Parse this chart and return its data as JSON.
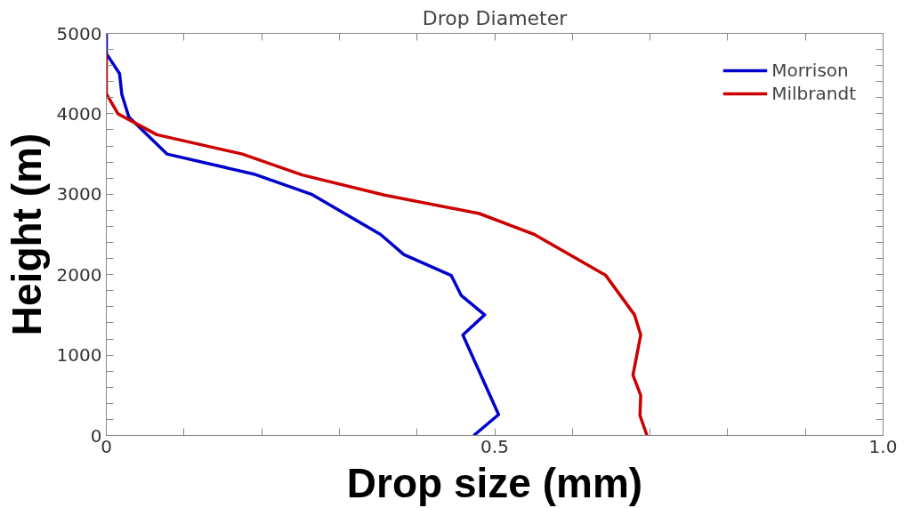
{
  "chart_data": {
    "type": "line",
    "title": "Drop Diameter",
    "xlabel": "Drop size (mm)",
    "ylabel": "Height (m)",
    "xlim": [
      0,
      1.0
    ],
    "ylim": [
      0,
      5000
    ],
    "xticks": [
      0,
      {
        "value": 0.1,
        "label": null
      },
      {
        "value": 0.2,
        "label": null
      },
      {
        "value": 0.3,
        "label": null
      },
      {
        "value": 0.4,
        "label": null
      },
      0.5,
      {
        "value": 0.6,
        "label": null
      },
      {
        "value": 0.7,
        "label": null
      },
      {
        "value": 0.8,
        "label": null
      },
      {
        "value": 0.9,
        "label": null
      },
      {
        "value": 1.0,
        "label": "1.0"
      }
    ],
    "yticks": [
      0,
      {
        "value": 200,
        "label": null
      },
      {
        "value": 400,
        "label": null
      },
      {
        "value": 600,
        "label": null
      },
      {
        "value": 800,
        "label": null
      },
      1000,
      {
        "value": 1200,
        "label": null
      },
      {
        "value": 1400,
        "label": null
      },
      {
        "value": 1600,
        "label": null
      },
      {
        "value": 1800,
        "label": null
      },
      2000,
      {
        "value": 2200,
        "label": null
      },
      {
        "value": 2400,
        "label": null
      },
      {
        "value": 2600,
        "label": null
      },
      {
        "value": 2800,
        "label": null
      },
      3000,
      {
        "value": 3200,
        "label": null
      },
      {
        "value": 3400,
        "label": null
      },
      {
        "value": 3600,
        "label": null
      },
      {
        "value": 3800,
        "label": null
      },
      4000,
      {
        "value": 4200,
        "label": null
      },
      {
        "value": 4400,
        "label": null
      },
      {
        "value": 4600,
        "label": null
      },
      {
        "value": 4800,
        "label": null
      },
      5000
    ],
    "grid": false,
    "legend": "top right",
    "line_style": "solid",
    "marker": "none",
    "series": [
      {
        "name": "Morrison",
        "color": "#0000cc",
        "x": [
          0,
          0,
          0.017,
          0.02,
          0.029,
          0.078,
          0.19,
          0.264,
          0.353,
          0.383,
          0.444,
          0.457,
          0.487,
          0.459,
          0.505,
          0.473
        ],
        "values": [
          5000,
          4750,
          4500,
          4240,
          3960,
          3500,
          3250,
          3000,
          2500,
          2250,
          1990,
          1740,
          1500,
          1250,
          260,
          0
        ]
      },
      {
        "name": "Milbrandt",
        "color": "#cc0000",
        "x": [
          0,
          0,
          0.015,
          0.065,
          0.175,
          0.252,
          0.358,
          0.48,
          0.551,
          0.643,
          0.68,
          0.688,
          0.678,
          0.688,
          0.687,
          0.696
        ],
        "values": [
          4750,
          4250,
          4000,
          3740,
          3500,
          3240,
          2990,
          2760,
          2500,
          1990,
          1500,
          1250,
          750,
          500,
          250,
          0
        ]
      }
    ]
  }
}
